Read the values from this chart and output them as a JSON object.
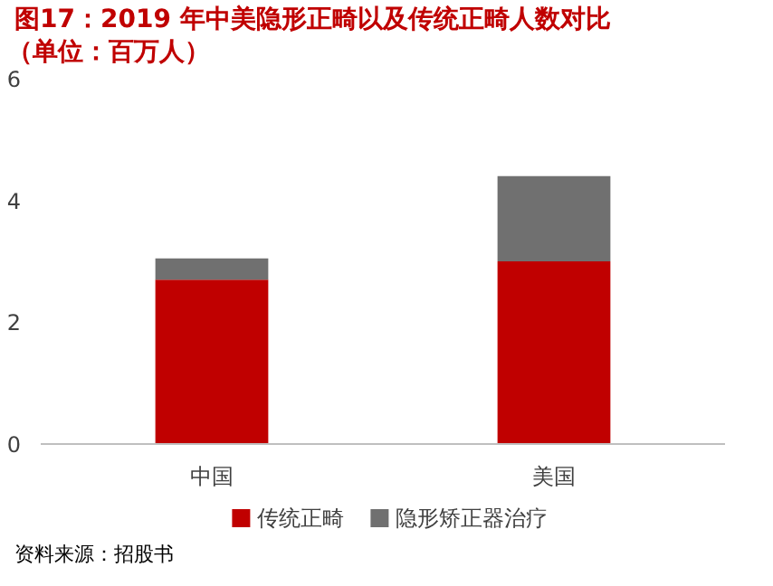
{
  "chart_data": {
    "type": "bar",
    "stacked": true,
    "title": "图17：2019 年中美隐形正畸以及传统正畸人数对比",
    "subtitle": "（单位：百万人）",
    "categories": [
      "中国",
      "美国"
    ],
    "series": [
      {
        "name": "传统正畸",
        "color": "#c00000",
        "values": [
          2.7,
          3.0
        ]
      },
      {
        "name": "隐形矫正器治疗",
        "color": "#707070",
        "values": [
          0.35,
          1.4
        ]
      }
    ],
    "ylim": [
      0,
      6
    ],
    "yticks": [
      0,
      2,
      4,
      6
    ],
    "grid": false,
    "legend": "bottom",
    "annotations": [
      "资料来源：招股书"
    ]
  }
}
